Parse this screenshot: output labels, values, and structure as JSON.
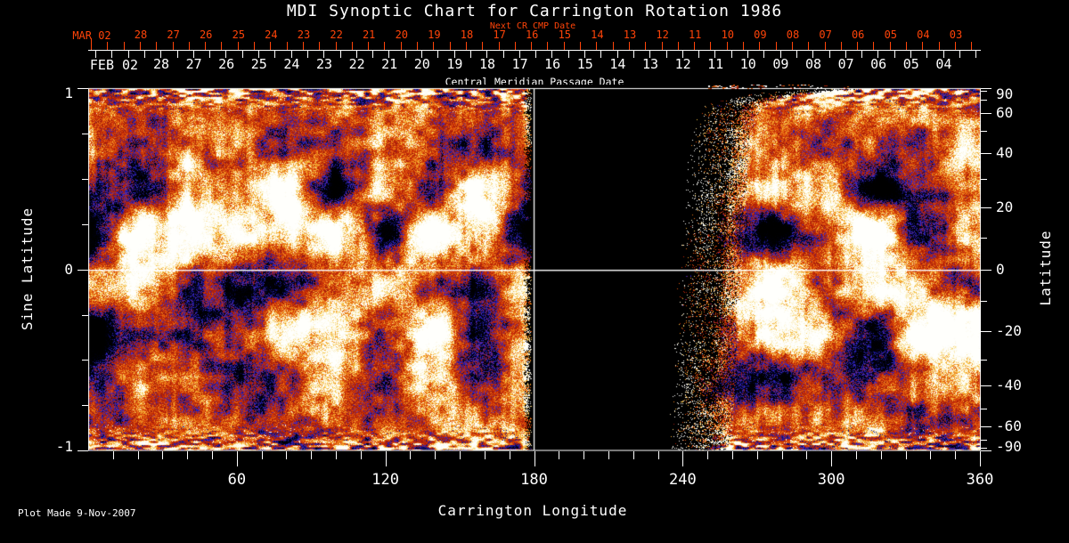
{
  "title": "MDI Synoptic Chart for Carrington Rotation 1986",
  "annotations": {
    "next_cr_label": "Next CR CMP Date",
    "cmp_label": "Central Meridian Passage Date",
    "footer": "Plot Made  9-Nov-2007"
  },
  "axes": {
    "top_red": {
      "prefix_label": "MAR 02",
      "day_labels": [
        "28",
        "27",
        "26",
        "25",
        "24",
        "23",
        "22",
        "21",
        "20",
        "19",
        "18",
        "17",
        "16",
        "15",
        "14",
        "13",
        "12",
        "11",
        "10",
        "09",
        "08",
        "07",
        "06",
        "05",
        "04",
        "03"
      ]
    },
    "top_white": {
      "prefix_label": "FEB 02",
      "day_labels": [
        "28",
        "27",
        "26",
        "25",
        "24",
        "23",
        "22",
        "21",
        "20",
        "19",
        "18",
        "17",
        "16",
        "15",
        "14",
        "13",
        "12",
        "11",
        "10",
        "09",
        "08",
        "07",
        "06",
        "05",
        "04"
      ]
    },
    "bottom": {
      "label": "Carrington Longitude",
      "tick_labels": [
        "60",
        "120",
        "180",
        "240",
        "300",
        "360"
      ]
    },
    "left": {
      "label": "Sine Latitude",
      "tick_labels": [
        "1",
        "0",
        "-1"
      ]
    },
    "right": {
      "label": "Latitude",
      "tick_labels": [
        "90",
        "60",
        "40",
        "20",
        "0",
        "-20",
        "-40",
        "-60",
        "-90"
      ]
    }
  },
  "colors": {
    "background": "#000000",
    "axis_white": "#ffffff",
    "red_axis": "#ff4409",
    "field_negative_blue": "#1c1c9c",
    "field_black": "#000000",
    "field_red": "#c42606",
    "field_orange": "#e0500c",
    "field_yellow": "#f7c848",
    "field_white": "#fffbee"
  },
  "chart_data": {
    "type": "heatmap",
    "title": "MDI Synoptic Chart for Carrington Rotation 1986",
    "carrington_rotation": 1986,
    "xlabel": "Carrington Longitude",
    "ylabel_left": "Sine Latitude",
    "ylabel_right": "Latitude",
    "x_range_deg": [
      0,
      360
    ],
    "x_major_ticks_deg": [
      60,
      120,
      180,
      240,
      300,
      360
    ],
    "x_minor_tick_step_deg": 10,
    "sine_latitude_range": [
      -1,
      1
    ],
    "sine_latitude_major_ticks": [
      1,
      0,
      -1
    ],
    "latitude_major_ticks_deg": [
      90,
      60,
      40,
      20,
      0,
      -20,
      -40,
      -60,
      -90
    ],
    "latitude_minor_tick_step_deg": 10,
    "top_axis_red": {
      "label": "Next CR CMP Date",
      "first_tick": "MAR 02",
      "day_ticks": [
        "28",
        "27",
        "26",
        "25",
        "24",
        "23",
        "22",
        "21",
        "20",
        "19",
        "18",
        "17",
        "16",
        "15",
        "14",
        "13",
        "12",
        "11",
        "10",
        "09",
        "08",
        "07",
        "06",
        "05",
        "04",
        "03"
      ]
    },
    "top_axis_white": {
      "label": "Central Meridian Passage Date",
      "first_tick": "FEB 02",
      "day_ticks": [
        "28",
        "27",
        "26",
        "25",
        "24",
        "23",
        "22",
        "21",
        "20",
        "19",
        "18",
        "17",
        "16",
        "15",
        "14",
        "13",
        "12",
        "11",
        "10",
        "09",
        "08",
        "07",
        "06",
        "05",
        "04"
      ]
    },
    "data_gap_longitude_deg": [
      178,
      257
    ],
    "reference_lines": [
      "horizontal white line at latitude 0 across full longitude range",
      "vertical white line at Carrington longitude 180"
    ],
    "field_color_coding": {
      "strong_negative_flux": "black and dark blue patches",
      "weak_mixed_flux": "mottled red and orange background",
      "strong_positive_flux": "yellow and white patches"
    },
    "activity_band_latitudes_deg": [
      20,
      -20
    ],
    "plot_made": "9-Nov-2007"
  }
}
